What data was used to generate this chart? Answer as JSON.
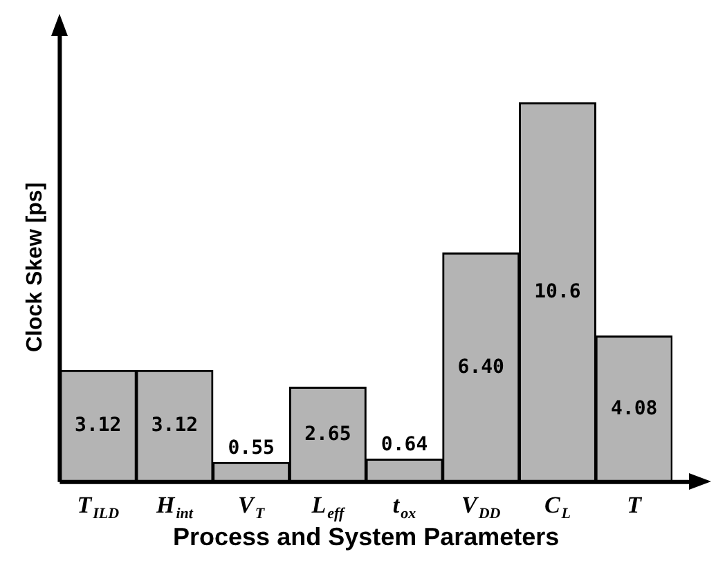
{
  "chart_data": {
    "type": "bar",
    "xlabel": "Process and System Parameters",
    "ylabel": "Clock Skew [ps]",
    "categories": [
      "T$_{ILD}$",
      "H$_{int}$",
      "V$_{T}$",
      "L$_{eff}$",
      "t$_{ox}$",
      "V$_{DD}$",
      "C$_{L}$",
      "T"
    ],
    "values": [
      3.12,
      3.12,
      0.55,
      2.65,
      0.64,
      6.4,
      10.6,
      4.08
    ],
    "value_labels": [
      "3.12",
      "3.12",
      "0.55",
      "2.65",
      "0.64",
      "6.40",
      "10.6",
      "4.08"
    ],
    "color": "#b4b4b4",
    "grid": false,
    "legend": false
  }
}
